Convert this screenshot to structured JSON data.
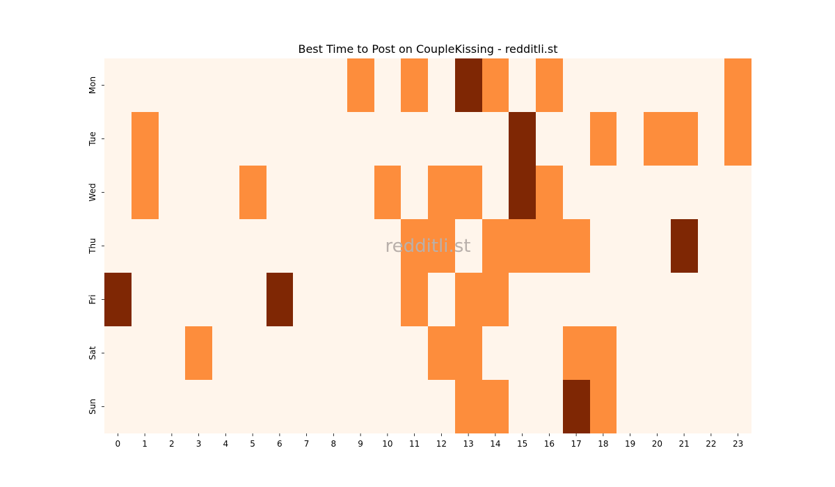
{
  "chart_data": {
    "type": "heatmap",
    "title": "Best Time to Post on CoupleKissing - redditli.st",
    "watermark": "redditli.st",
    "xlabel": "",
    "ylabel": "",
    "x_categories": [
      "0",
      "1",
      "2",
      "3",
      "4",
      "5",
      "6",
      "7",
      "8",
      "9",
      "10",
      "11",
      "12",
      "13",
      "14",
      "15",
      "16",
      "17",
      "18",
      "19",
      "20",
      "21",
      "22",
      "23"
    ],
    "y_categories": [
      "Mon",
      "Tue",
      "Wed",
      "Thu",
      "Fri",
      "Sat",
      "Sun"
    ],
    "values": [
      [
        0,
        0,
        0,
        0,
        0,
        0,
        0,
        0,
        0,
        1,
        0,
        1,
        0,
        2,
        1,
        0,
        1,
        0,
        0,
        0,
        0,
        0,
        0,
        1
      ],
      [
        0,
        1,
        0,
        0,
        0,
        0,
        0,
        0,
        0,
        0,
        0,
        0,
        0,
        0,
        0,
        2,
        0,
        0,
        1,
        0,
        1,
        1,
        0,
        1
      ],
      [
        0,
        1,
        0,
        0,
        0,
        1,
        0,
        0,
        0,
        0,
        1,
        0,
        1,
        1,
        0,
        2,
        1,
        0,
        0,
        0,
        0,
        0,
        0,
        0
      ],
      [
        0,
        0,
        0,
        0,
        0,
        0,
        0,
        0,
        0,
        0,
        0,
        1,
        1,
        0,
        1,
        1,
        1,
        1,
        0,
        0,
        0,
        2,
        0,
        0
      ],
      [
        2,
        0,
        0,
        0,
        0,
        0,
        2,
        0,
        0,
        0,
        0,
        1,
        0,
        1,
        1,
        0,
        0,
        0,
        0,
        0,
        0,
        0,
        0,
        0
      ],
      [
        0,
        0,
        0,
        1,
        0,
        0,
        0,
        0,
        0,
        0,
        0,
        0,
        1,
        1,
        0,
        0,
        0,
        1,
        1,
        0,
        0,
        0,
        0,
        0
      ],
      [
        0,
        0,
        0,
        0,
        0,
        0,
        0,
        0,
        0,
        0,
        0,
        0,
        0,
        1,
        1,
        0,
        0,
        2,
        1,
        0,
        0,
        0,
        0,
        0
      ]
    ],
    "colors": {
      "0": "#fff5eb",
      "1": "#fd8d3c",
      "2": "#7f2704"
    },
    "grid": false,
    "legend": "none"
  }
}
